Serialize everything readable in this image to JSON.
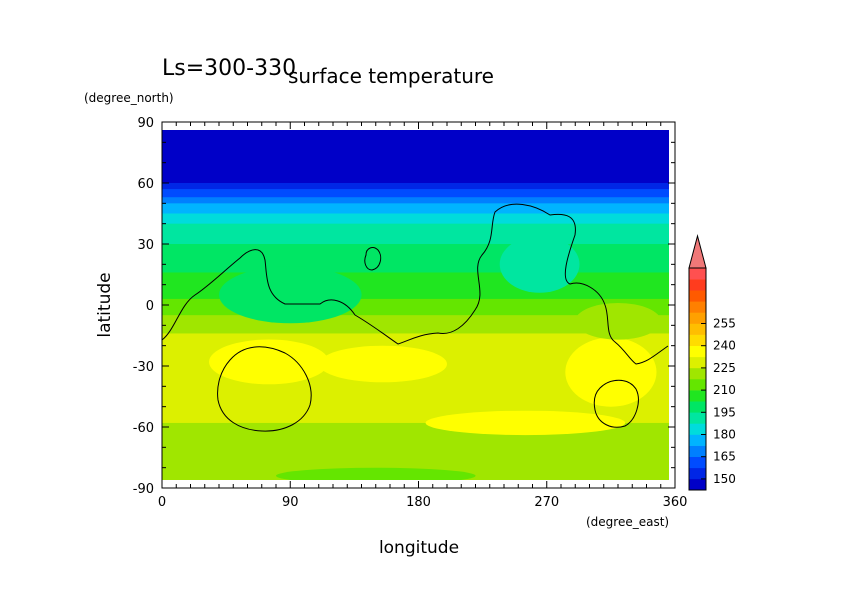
{
  "figure": {
    "period_label": "Ls=300-330",
    "title": "surface temperature"
  },
  "chart_data": {
    "type": "heatmap",
    "title": "surface temperature",
    "xlabel": "longitude",
    "ylabel": "latitude",
    "x_unit": "(degree_east)",
    "y_unit": "(degree_north)",
    "xlim": [
      0,
      360
    ],
    "ylim": [
      -90,
      90
    ],
    "x_ticks": [
      0,
      90,
      180,
      270,
      360
    ],
    "y_ticks": [
      90,
      60,
      30,
      0,
      -30,
      -60,
      -90
    ],
    "grid": false,
    "field_description_latitudes": [
      85,
      60,
      50,
      40,
      30,
      20,
      10,
      0,
      -10,
      -20,
      -30,
      -40,
      -50,
      -60,
      -70,
      -80,
      -85
    ],
    "zonal_mean_temperature": [
      145,
      150,
      172,
      188,
      195,
      200,
      206,
      212,
      222,
      230,
      232,
      231,
      229,
      224,
      220,
      220,
      221
    ],
    "contour_overlay": "topography (black lines)",
    "colorbar": {
      "levels": [
        255,
        240,
        225,
        210,
        195,
        180,
        165,
        150
      ],
      "min": 142.5,
      "max": 262.5,
      "step": 7.5,
      "extend": "max",
      "colors": [
        "#0000c8",
        "#0026e6",
        "#004cff",
        "#0080ff",
        "#00b4ff",
        "#00dcdc",
        "#00e6a0",
        "#00e664",
        "#20e620",
        "#64e600",
        "#a0e600",
        "#dcf000",
        "#ffff00",
        "#ffdc00",
        "#ffbe00",
        "#ffa000",
        "#ff8000",
        "#ff5a00",
        "#ff3c1e",
        "#ff5050",
        "#f07878"
      ]
    }
  }
}
